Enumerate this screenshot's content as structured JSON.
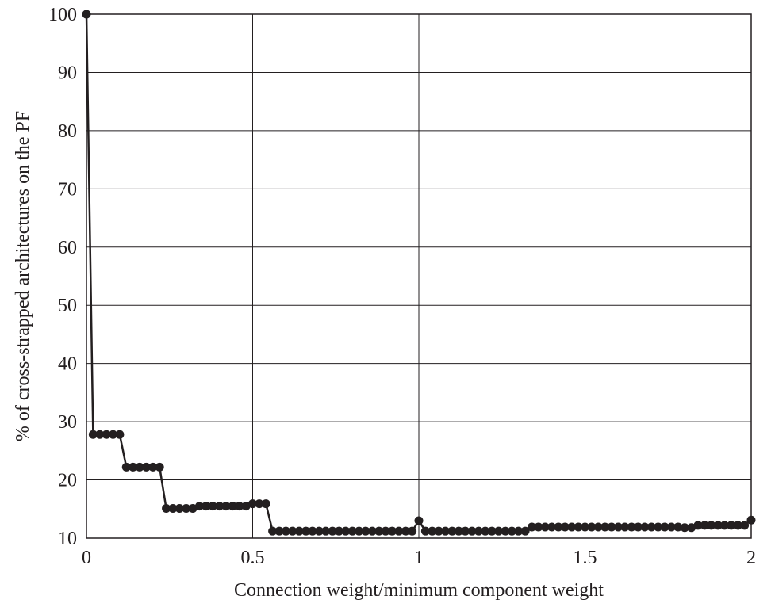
{
  "chart_data": {
    "type": "line",
    "title": "",
    "xlabel": "Connection weight/minimum component weight",
    "ylabel": "% of cross-strapped architectures on the PF",
    "xlim": [
      0,
      2
    ],
    "ylim": [
      10,
      100
    ],
    "x_ticks": [
      "0",
      "0.5",
      "1",
      "1.5",
      "2"
    ],
    "y_ticks": [
      "10",
      "20",
      "30",
      "40",
      "50",
      "60",
      "70",
      "80",
      "90",
      "100"
    ],
    "grid": true,
    "legend": "none",
    "series_color": "#231f20",
    "series": [
      {
        "x": [
          0,
          0.02,
          0.04,
          0.06,
          0.08,
          0.1,
          0.12,
          0.14,
          0.16,
          0.18,
          0.2,
          0.22,
          0.24,
          0.26,
          0.28,
          0.3,
          0.32,
          0.34,
          0.36,
          0.38,
          0.4,
          0.42,
          0.44,
          0.46,
          0.48,
          0.5,
          0.52,
          0.54,
          0.56,
          0.58,
          0.6,
          0.62,
          0.64,
          0.66,
          0.68,
          0.7,
          0.72,
          0.74,
          0.76,
          0.78,
          0.8,
          0.82,
          0.84,
          0.86,
          0.88,
          0.9,
          0.92,
          0.94,
          0.96,
          0.98,
          1.0,
          1.02,
          1.04,
          1.06,
          1.08,
          1.1,
          1.12,
          1.14,
          1.16,
          1.18,
          1.2,
          1.22,
          1.24,
          1.26,
          1.28,
          1.3,
          1.32,
          1.34,
          1.36,
          1.38,
          1.4,
          1.42,
          1.44,
          1.46,
          1.48,
          1.5,
          1.52,
          1.54,
          1.56,
          1.58,
          1.6,
          1.62,
          1.64,
          1.66,
          1.68,
          1.7,
          1.72,
          1.74,
          1.76,
          1.78,
          1.8,
          1.82,
          1.84,
          1.86,
          1.88,
          1.9,
          1.92,
          1.94,
          1.96,
          1.98,
          2.0
        ],
        "y": [
          100,
          27.8,
          27.8,
          27.8,
          27.8,
          27.8,
          22.2,
          22.2,
          22.2,
          22.2,
          22.2,
          22.2,
          15.1,
          15.1,
          15.1,
          15.1,
          15.1,
          15.5,
          15.5,
          15.5,
          15.5,
          15.5,
          15.5,
          15.5,
          15.5,
          15.9,
          15.9,
          15.9,
          11.2,
          11.2,
          11.2,
          11.2,
          11.2,
          11.2,
          11.2,
          11.2,
          11.2,
          11.2,
          11.2,
          11.2,
          11.2,
          11.2,
          11.2,
          11.2,
          11.2,
          11.2,
          11.2,
          11.2,
          11.2,
          11.2,
          13.0,
          11.2,
          11.2,
          11.2,
          11.2,
          11.2,
          11.2,
          11.2,
          11.2,
          11.2,
          11.2,
          11.2,
          11.2,
          11.2,
          11.2,
          11.2,
          11.2,
          11.9,
          11.9,
          11.9,
          11.9,
          11.9,
          11.9,
          11.9,
          11.9,
          11.9,
          11.9,
          11.9,
          11.9,
          11.9,
          11.9,
          11.9,
          11.9,
          11.9,
          11.9,
          11.9,
          11.9,
          11.9,
          11.9,
          11.9,
          11.8,
          11.8,
          12.2,
          12.2,
          12.2,
          12.2,
          12.2,
          12.2,
          12.2,
          12.2,
          13.1
        ]
      }
    ]
  }
}
